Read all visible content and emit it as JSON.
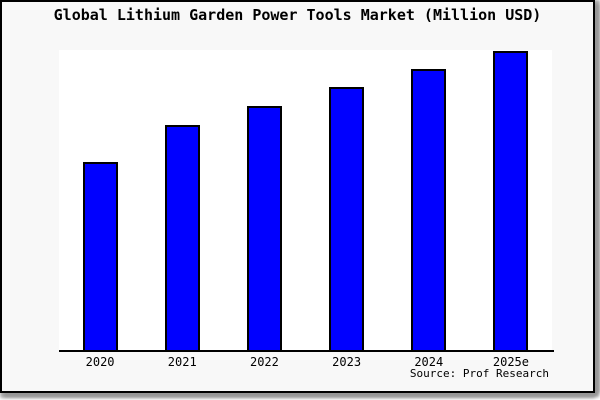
{
  "title": "Global Lithium Garden Power Tools Market (Million USD)",
  "source": "Source: Prof Research",
  "colors": {
    "figure_background": "#f8f8f8",
    "plot_background": "#ffffff",
    "bar_fill": "#0000ff",
    "bar_border": "#000000",
    "axis_line": "#000000",
    "frame_border": "#000000",
    "text": "#000000"
  },
  "chart_data": {
    "type": "bar",
    "categories": [
      "2020",
      "2021",
      "2022",
      "2023",
      "2024",
      "2025e"
    ],
    "values": [
      188,
      225,
      244,
      263,
      281,
      299
    ],
    "value_scale_note": "no y-axis ticks or data labels are shown; values are relative bar heights measured in pixels",
    "title": "Global Lithium Garden Power Tools Market (Million USD)",
    "xlabel": "",
    "ylabel": "",
    "ylim": [
      0,
      300
    ],
    "grid": false,
    "legend": false,
    "annotations": [
      "Source: Prof Research"
    ]
  }
}
